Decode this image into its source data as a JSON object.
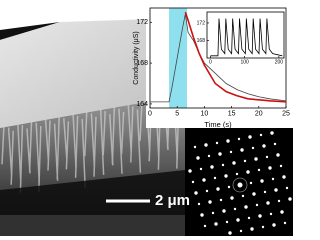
{
  "chart_data": [
    {
      "type": "line",
      "x_label": "Time (s)",
      "y_label": "Conductivity (μS)",
      "x": [
        0,
        3.5,
        4,
        4.5,
        5,
        5.5,
        6,
        6.5,
        7,
        8,
        9,
        10,
        12,
        14,
        16,
        18,
        20,
        22,
        25
      ],
      "series": [
        {
          "color": "#444444",
          "values": [
            164.2,
            164.2,
            165.5,
            167,
            168.5,
            170,
            171.5,
            172.8,
            171,
            170.2,
            169,
            168,
            167,
            166,
            165.4,
            165,
            164.7,
            164.5,
            164.3
          ]
        },
        {
          "color": "#cc1111",
          "values": [
            null,
            null,
            null,
            null,
            null,
            null,
            null,
            173,
            172.2,
            170.5,
            169,
            167.8,
            166,
            165.2,
            164.8,
            164.5,
            164.4,
            164.3,
            164.2
          ]
        }
      ],
      "highlight": [
        3.5,
        6.8
      ],
      "highlight_color": "#8fe0ee",
      "xlim": [
        0,
        25
      ],
      "xticks": [
        0,
        5,
        10,
        15,
        20,
        25
      ],
      "ylim": [
        163.6,
        173.4
      ],
      "yticks": [
        164,
        168,
        172
      ]
    },
    {
      "type": "line",
      "x": [
        0,
        22,
        25,
        32,
        42,
        45,
        52,
        62,
        65,
        72,
        82,
        85,
        92,
        102,
        105,
        112,
        122,
        125,
        132,
        142,
        145,
        152,
        162,
        165,
        172,
        182,
        210
      ],
      "series": [
        {
          "color": "#000000",
          "values": [
            164.5,
            164.5,
            173,
            166,
            165,
            173,
            166,
            165,
            173,
            166,
            165,
            173,
            166,
            165,
            173,
            166,
            165,
            173,
            166,
            165,
            173,
            166,
            165,
            173,
            166,
            165,
            164.5
          ]
        }
      ],
      "xlim": [
        -10,
        215
      ],
      "xticks": [
        0,
        100,
        200
      ],
      "ylim": [
        164,
        174.5
      ],
      "yticks": [
        168,
        172
      ]
    }
  ],
  "scale_bar_label": "2 μm"
}
